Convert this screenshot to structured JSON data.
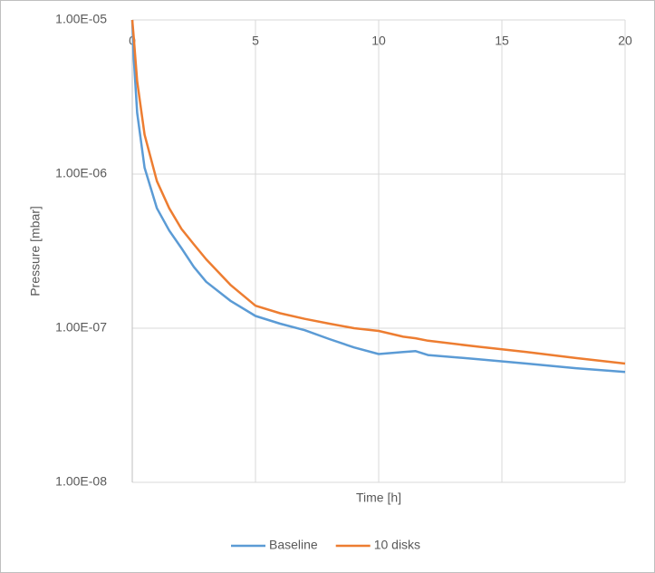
{
  "chart_data": {
    "type": "line",
    "x_label": "Time [h]",
    "y_label": "Pressure  [mbar]",
    "x": [
      0,
      0.05,
      0.2,
      0.5,
      1,
      1.5,
      2,
      2.5,
      3,
      4,
      5,
      6,
      7,
      8,
      9,
      10,
      11,
      11.5,
      12,
      14,
      16,
      18,
      20
    ],
    "series": [
      {
        "name": "Baseline",
        "color": "#5b9bd5",
        "values": [
          1e-05,
          6e-06,
          2.5e-06,
          1.1e-06,
          6e-07,
          4.3e-07,
          3.3e-07,
          2.5e-07,
          2e-07,
          1.5e-07,
          1.2e-07,
          1.07e-07,
          9.7e-08,
          8.5e-08,
          7.5e-08,
          6.8e-08,
          7e-08,
          7.1e-08,
          6.7e-08,
          6.3e-08,
          5.9e-08,
          5.5e-08,
          5.2e-08
        ]
      },
      {
        "name": "10 disks",
        "color": "#ed7d31",
        "values": [
          1e-05,
          8e-06,
          4e-06,
          1.8e-06,
          9e-07,
          6e-07,
          4.4e-07,
          3.5e-07,
          2.8e-07,
          1.9e-07,
          1.4e-07,
          1.25e-07,
          1.15e-07,
          1.07e-07,
          1e-07,
          9.6e-08,
          8.8e-08,
          8.6e-08,
          8.3e-08,
          7.6e-08,
          7e-08,
          6.4e-08,
          5.9e-08
        ]
      }
    ],
    "xlim": [
      0,
      20
    ],
    "xticks": [
      0,
      5,
      10,
      15,
      20
    ],
    "ylim": [
      1e-08,
      1e-05
    ],
    "log_y": true,
    "yticks": [
      {
        "value": 1e-08,
        "label": "1.00E-08"
      },
      {
        "value": 1e-07,
        "label": "1.00E-07"
      },
      {
        "value": 1e-06,
        "label": "1.00E-06"
      },
      {
        "value": 1e-05,
        "label": "1.00E-05"
      }
    ],
    "grid": true,
    "legend": "bottom"
  }
}
